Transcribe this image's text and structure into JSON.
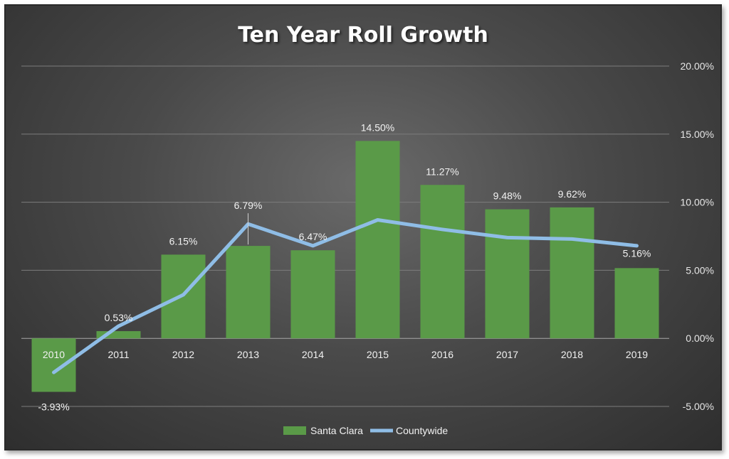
{
  "chart_data": {
    "type": "bar",
    "title": "Ten Year Roll Growth",
    "categories": [
      "2010",
      "2011",
      "2012",
      "2013",
      "2014",
      "2015",
      "2016",
      "2017",
      "2018",
      "2019"
    ],
    "series": [
      {
        "name": "Santa Clara",
        "kind": "bar",
        "color": "#5a9a48",
        "values": [
          -3.93,
          0.53,
          6.15,
          6.79,
          6.47,
          14.5,
          11.27,
          9.48,
          9.62,
          5.16
        ],
        "labels": [
          "-3.93%",
          "0.53%",
          "6.15%",
          "6.79%",
          "6.47%",
          "14.50%",
          "11.27%",
          "9.48%",
          "9.62%",
          "5.16%"
        ]
      },
      {
        "name": "Countywide",
        "kind": "line",
        "color": "#8fbde6",
        "values": [
          -2.5,
          0.9,
          3.2,
          8.4,
          6.8,
          8.7,
          8.0,
          7.4,
          7.3,
          6.8
        ]
      }
    ],
    "y_axis": {
      "position": "right",
      "ylim": [
        -5,
        20
      ],
      "ticks": [
        20,
        15,
        10,
        5,
        0,
        -5
      ],
      "tick_labels": [
        "20.00%",
        "15.00%",
        "10.00%",
        "5.00%",
        "0.00%",
        "-5.00%"
      ]
    },
    "grid": true,
    "legend": "bottom"
  }
}
